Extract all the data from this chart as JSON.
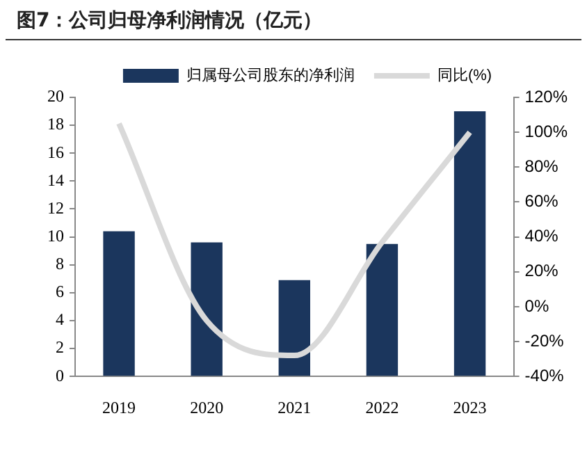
{
  "chart_data": {
    "type": "bar",
    "title": "图7：公司归母净利润情况（亿元）",
    "categories": [
      "2019",
      "2020",
      "2021",
      "2022",
      "2023"
    ],
    "series": [
      {
        "name": "归属母公司股东的净利润",
        "color": "#1b365d",
        "values": [
          10.4,
          9.6,
          6.9,
          9.5,
          19.0
        ]
      },
      {
        "name": "同比(%)",
        "type": "line",
        "axis": "y2",
        "color": "#d9d9d9",
        "values": [
          105,
          -8,
          -28,
          37,
          100
        ]
      }
    ],
    "ylim": [
      0,
      20
    ],
    "yticks": [
      0,
      2,
      4,
      6,
      8,
      10,
      12,
      14,
      16,
      18,
      20
    ],
    "y2lim": [
      -40,
      120
    ],
    "y2ticks": [
      {
        "value": -40,
        "label": "-40%"
      },
      {
        "value": -20,
        "label": "-20%"
      },
      {
        "value": 0,
        "label": "0%"
      },
      {
        "value": 20,
        "label": "20%"
      },
      {
        "value": 40,
        "label": "40%"
      },
      {
        "value": 60,
        "label": "60%"
      },
      {
        "value": 80,
        "label": "80%"
      },
      {
        "value": 100,
        "label": "100%"
      },
      {
        "value": 120,
        "label": "120%"
      }
    ],
    "grid": false,
    "legend": "top",
    "marker": "none",
    "line_style": "solid"
  }
}
